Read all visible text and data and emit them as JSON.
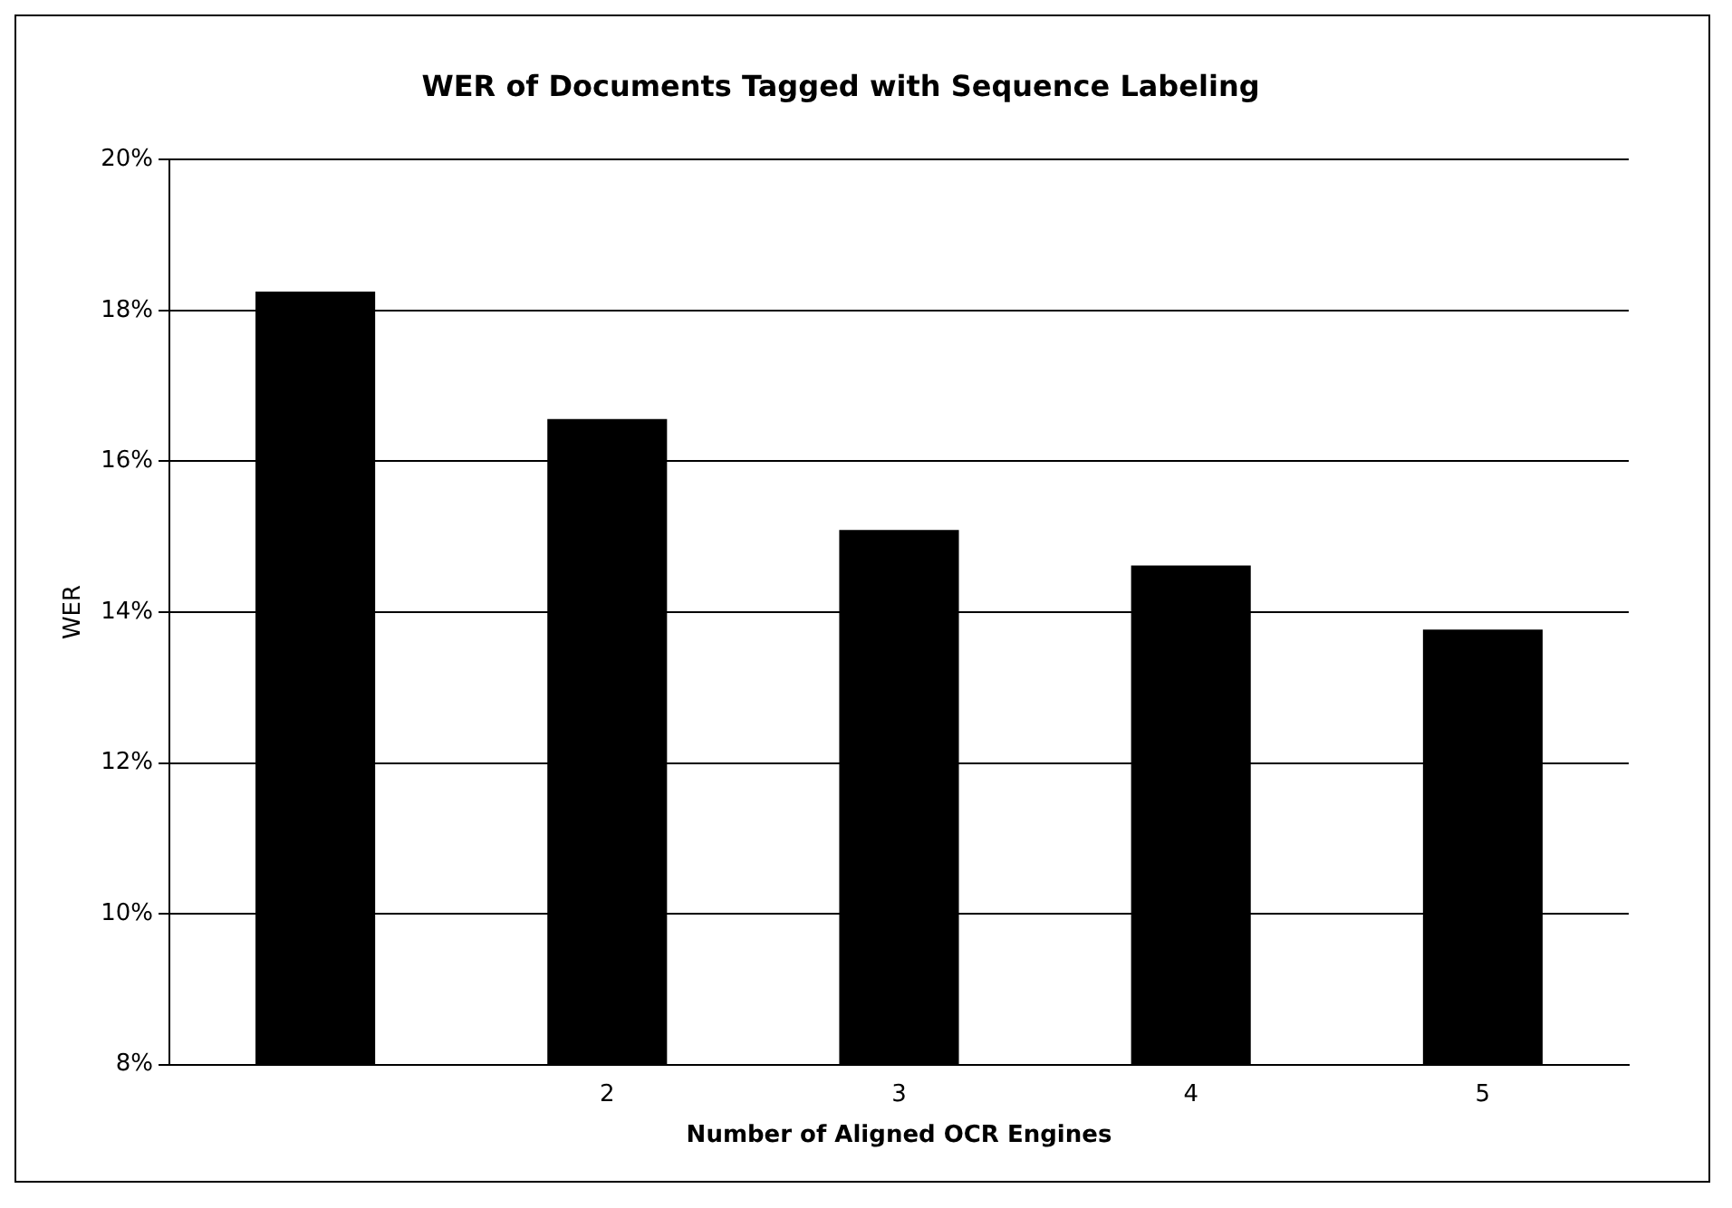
{
  "chart_data": {
    "type": "bar",
    "title": "WER of Documents Tagged with Sequence Labeling",
    "xlabel": "Number of Aligned OCR Engines",
    "ylabel": "WER",
    "categories": [
      null,
      "2",
      "3",
      "4",
      "5"
    ],
    "values": [
      18.25,
      16.56,
      15.09,
      14.62,
      13.77
    ],
    "color": "#000000",
    "ylim": [
      8,
      20
    ],
    "yticks": [
      {
        "value": 8,
        "label": "8%"
      },
      {
        "value": 10,
        "label": "10%"
      },
      {
        "value": 12,
        "label": "12%"
      },
      {
        "value": 14,
        "label": "14%"
      },
      {
        "value": 16,
        "label": "16%"
      },
      {
        "value": 18,
        "label": "18%"
      },
      {
        "value": 20,
        "label": "20%"
      }
    ],
    "grid": "y",
    "legend": false
  }
}
